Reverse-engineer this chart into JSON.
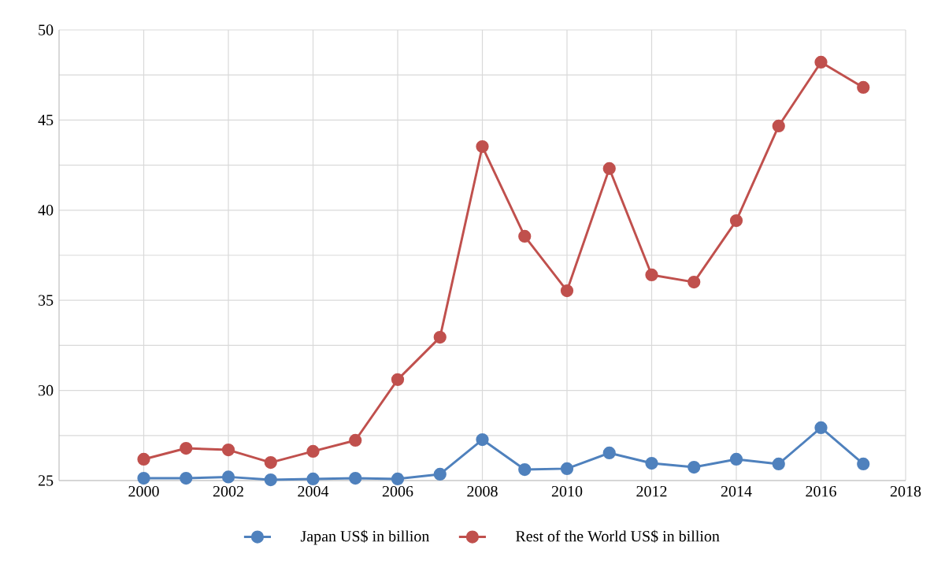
{
  "chart_data": {
    "type": "line",
    "x": [
      2000,
      2001,
      2002,
      2003,
      2004,
      2005,
      2006,
      2007,
      2008,
      2009,
      2010,
      2011,
      2012,
      2013,
      2014,
      2015,
      2016,
      2017
    ],
    "series": [
      {
        "name": "Japan US$ in billion",
        "color": "#4f81bd",
        "values": [
          25.13,
          25.13,
          25.2,
          25.04,
          25.09,
          25.13,
          25.09,
          25.35,
          27.27,
          25.61,
          25.66,
          26.53,
          25.96,
          25.74,
          26.18,
          25.92,
          27.93,
          25.92
        ]
      },
      {
        "name": "Rest of the World US$ in billion",
        "color": "#c0504d",
        "values": [
          26.18,
          26.79,
          26.7,
          26.0,
          26.62,
          27.23,
          30.6,
          32.95,
          43.53,
          38.55,
          35.53,
          42.31,
          36.41,
          36.01,
          39.42,
          44.67,
          48.21,
          46.81
        ]
      }
    ],
    "xlim": [
      1998,
      2018
    ],
    "xticks": [
      2000,
      2002,
      2004,
      2006,
      2008,
      2010,
      2012,
      2014,
      2016,
      2018
    ],
    "ylim": [
      25,
      50
    ],
    "yticks": [
      25,
      {
        "value": 27.5,
        "label": null
      },
      30,
      {
        "value": 32.5,
        "label": null
      },
      35,
      {
        "value": 37.5,
        "label": null
      },
      40,
      {
        "value": 42.5,
        "label": null
      },
      45,
      {
        "value": 47.5,
        "label": null
      },
      50
    ],
    "grid": true,
    "legend": "bottom",
    "marker": "circle",
    "line_style": "solid"
  }
}
